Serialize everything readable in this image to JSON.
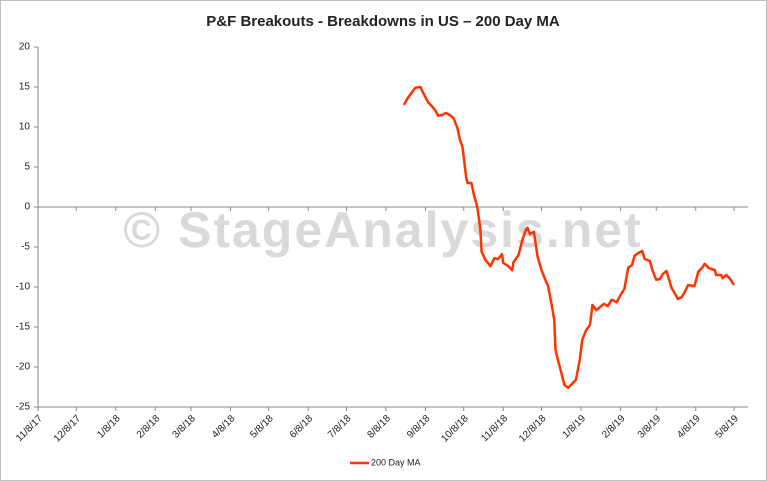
{
  "chart_data": {
    "type": "line",
    "title": "P&F Breakouts - Breakdowns in US – 200 Day MA",
    "watermark": "© StageAnalysis.net",
    "x": [
      "2018-08-22",
      "2018-08-25",
      "2018-08-28",
      "2018-08-31",
      "2018-09-04",
      "2018-09-07",
      "2018-09-10",
      "2018-09-13",
      "2018-09-16",
      "2018-09-18",
      "2018-09-21",
      "2018-09-24",
      "2018-09-27",
      "2018-09-30",
      "2018-10-03",
      "2018-10-05",
      "2018-10-07",
      "2018-10-10",
      "2018-10-11",
      "2018-10-14",
      "2018-10-16",
      "2018-10-18",
      "2018-10-19",
      "2018-10-21",
      "2018-10-22",
      "2018-10-25",
      "2018-10-29",
      "2018-11-01",
      "2018-11-04",
      "2018-11-07",
      "2018-11-08",
      "2018-11-12",
      "2018-11-15",
      "2018-11-16",
      "2018-11-20",
      "2018-11-23",
      "2018-11-26",
      "2018-11-27",
      "2018-11-29",
      "2018-12-02",
      "2018-12-05",
      "2018-12-08",
      "2018-12-12",
      "2018-12-13",
      "2018-12-16",
      "2018-12-18",
      "2018-12-19",
      "2018-12-23",
      "2018-12-26",
      "2018-12-29",
      "2019-01-01",
      "2019-01-04",
      "2019-01-07",
      "2019-01-09",
      "2019-01-12",
      "2019-01-15",
      "2019-01-17",
      "2019-01-20",
      "2019-01-23",
      "2019-01-26",
      "2019-01-29",
      "2019-02-01",
      "2019-02-05",
      "2019-02-08",
      "2019-02-11",
      "2019-02-14",
      "2019-02-17",
      "2019-02-19",
      "2019-02-22",
      "2019-02-25",
      "2019-02-27",
      "2019-03-03",
      "2019-03-05",
      "2019-03-08",
      "2019-03-11",
      "2019-03-13",
      "2019-03-16",
      "2019-03-17",
      "2019-03-20",
      "2019-03-25",
      "2019-03-28",
      "2019-03-30",
      "2019-04-02",
      "2019-04-07",
      "2019-04-10",
      "2019-04-13",
      "2019-04-15",
      "2019-04-18",
      "2019-04-23",
      "2019-04-24",
      "2019-04-28",
      "2019-04-29",
      "2019-05-02",
      "2019-05-05",
      "2019-05-08"
    ],
    "series": [
      {
        "name": "200 Day MA",
        "color": "#ff3300",
        "values": [
          12.75,
          13.6,
          14.25,
          14.9,
          15,
          14,
          13.1,
          12.6,
          12,
          11.4,
          11.5,
          11.75,
          11.5,
          11.1,
          9.9,
          8.4,
          7.5,
          3.6,
          3,
          3,
          1.5,
          0.4,
          -0.4,
          -2.75,
          -5.6,
          -6.6,
          -7.4,
          -6.4,
          -6.5,
          -5.9,
          -7,
          -7.4,
          -7.9,
          -6.9,
          -6,
          -4.1,
          -2.75,
          -2.6,
          -3.4,
          -3.1,
          -6.25,
          -7.9,
          -9.5,
          -9.75,
          -12.25,
          -14.1,
          -17.9,
          -20.4,
          -22.25,
          -22.6,
          -22.1,
          -21.6,
          -19.1,
          -16.6,
          -15.4,
          -14.75,
          -12.25,
          -12.9,
          -12.5,
          -12.1,
          -12.4,
          -11.6,
          -11.9,
          -11,
          -10.25,
          -7.6,
          -7.25,
          -6.1,
          -5.75,
          -5.5,
          -6.5,
          -6.75,
          -7.9,
          -9.1,
          -9,
          -8.4,
          -8,
          -8.5,
          -10.1,
          -11.5,
          -11.25,
          -10.75,
          -9.75,
          -9.9,
          -8.1,
          -7.6,
          -7.1,
          -7.6,
          -7.9,
          -8.5,
          -8.5,
          -8.9,
          -8.5,
          -9,
          -9.75
        ]
      }
    ],
    "xlim": [
      "2017-11-08",
      "2019-05-19"
    ],
    "xticks": [
      {
        "value": "2017-11-08",
        "label": "11/8/17"
      },
      {
        "value": "2017-12-08",
        "label": "12/8/17"
      },
      {
        "value": "2018-01-08",
        "label": "1/8/18"
      },
      {
        "value": "2018-02-08",
        "label": "2/8/18"
      },
      {
        "value": "2018-03-08",
        "label": "3/8/18"
      },
      {
        "value": "2018-04-08",
        "label": "4/8/18"
      },
      {
        "value": "2018-05-08",
        "label": "5/8/18"
      },
      {
        "value": "2018-06-08",
        "label": "6/8/18"
      },
      {
        "value": "2018-07-08",
        "label": "7/8/18"
      },
      {
        "value": "2018-08-08",
        "label": "8/8/18"
      },
      {
        "value": "2018-09-08",
        "label": "9/8/18"
      },
      {
        "value": "2018-10-08",
        "label": "10/8/18"
      },
      {
        "value": "2018-11-08",
        "label": "11/8/18"
      },
      {
        "value": "2018-12-08",
        "label": "12/8/18"
      },
      {
        "value": "2019-01-08",
        "label": "1/8/19"
      },
      {
        "value": "2019-02-08",
        "label": "2/8/19"
      },
      {
        "value": "2019-03-08",
        "label": "3/8/19"
      },
      {
        "value": "2019-04-08",
        "label": "4/8/19"
      },
      {
        "value": "2019-05-08",
        "label": "5/8/19"
      }
    ],
    "ylim": [
      -25,
      20
    ],
    "yticks": [
      -25,
      -20,
      -15,
      -10,
      -5,
      0,
      5,
      10,
      15,
      20
    ],
    "grid": false,
    "legend": "bottom"
  }
}
